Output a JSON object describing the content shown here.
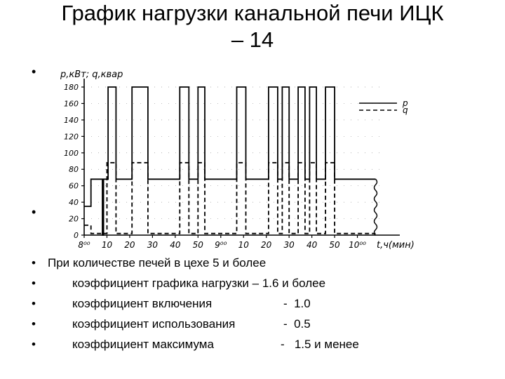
{
  "slide": {
    "title_line1": "График нагрузки канальной печи ИЦК",
    "title_line2": "– 14",
    "bullet_char": "•"
  },
  "chart_data": {
    "type": "line",
    "ylabel": "p,кВт; q,квар",
    "xlabel": "t,ч(мин)",
    "y_ticks": [
      0,
      20,
      40,
      60,
      80,
      100,
      120,
      140,
      160,
      180
    ],
    "ylim": [
      0,
      190
    ],
    "x_ticks": [
      "8⁰⁰",
      "10",
      "20",
      "30",
      "40",
      "50",
      "9⁰⁰",
      "10",
      "20",
      "30",
      "40",
      "50",
      "10⁰⁰"
    ],
    "x_unit": "minutes from 8:00",
    "xlim": [
      0,
      130
    ],
    "legend_position": "top-right",
    "series": [
      {
        "name": "p",
        "style": "solid",
        "points": [
          [
            0,
            35
          ],
          [
            3,
            35
          ],
          [
            3,
            68
          ],
          [
            8,
            68
          ],
          [
            8,
            0
          ],
          [
            8.5,
            0
          ],
          [
            8.5,
            68
          ],
          [
            10.5,
            68
          ],
          [
            10.5,
            180
          ],
          [
            14,
            180
          ],
          [
            14,
            68
          ],
          [
            21,
            68
          ],
          [
            21,
            180
          ],
          [
            28,
            180
          ],
          [
            28,
            68
          ],
          [
            42,
            68
          ],
          [
            42,
            180
          ],
          [
            46,
            180
          ],
          [
            46,
            68
          ],
          [
            50,
            68
          ],
          [
            50,
            180
          ],
          [
            53,
            180
          ],
          [
            53,
            68
          ],
          [
            67,
            68
          ],
          [
            67,
            180
          ],
          [
            71,
            180
          ],
          [
            71,
            68
          ],
          [
            81,
            68
          ],
          [
            81,
            180
          ],
          [
            85,
            180
          ],
          [
            85,
            68
          ],
          [
            87,
            68
          ],
          [
            87,
            180
          ],
          [
            90,
            180
          ],
          [
            90,
            68
          ],
          [
            94,
            68
          ],
          [
            94,
            180
          ],
          [
            97,
            180
          ],
          [
            97,
            68
          ],
          [
            99,
            68
          ],
          [
            99,
            180
          ],
          [
            102,
            180
          ],
          [
            102,
            68
          ],
          [
            106,
            68
          ],
          [
            106,
            180
          ],
          [
            110,
            180
          ],
          [
            110,
            68
          ],
          [
            128,
            68
          ]
        ]
      },
      {
        "name": "q",
        "style": "dashed",
        "points": [
          [
            0,
            12
          ],
          [
            3,
            12
          ],
          [
            3,
            2
          ],
          [
            10,
            2
          ],
          [
            10,
            88
          ],
          [
            14,
            88
          ],
          [
            14,
            2
          ],
          [
            21,
            2
          ],
          [
            21,
            88
          ],
          [
            28,
            88
          ],
          [
            28,
            2
          ],
          [
            42,
            2
          ],
          [
            42,
            88
          ],
          [
            46,
            88
          ],
          [
            46,
            2
          ],
          [
            50,
            2
          ],
          [
            50,
            88
          ],
          [
            53,
            88
          ],
          [
            53,
            2
          ],
          [
            67,
            2
          ],
          [
            67,
            88
          ],
          [
            71,
            88
          ],
          [
            71,
            2
          ],
          [
            81,
            2
          ],
          [
            81,
            88
          ],
          [
            85,
            88
          ],
          [
            85,
            2
          ],
          [
            87,
            2
          ],
          [
            87,
            88
          ],
          [
            90,
            88
          ],
          [
            90,
            2
          ],
          [
            94,
            2
          ],
          [
            94,
            88
          ],
          [
            97,
            88
          ],
          [
            97,
            2
          ],
          [
            99,
            2
          ],
          [
            99,
            88
          ],
          [
            102,
            88
          ],
          [
            102,
            2
          ],
          [
            106,
            2
          ],
          [
            106,
            88
          ],
          [
            110,
            88
          ],
          [
            110,
            2
          ],
          [
            128,
            2
          ]
        ]
      }
    ]
  },
  "notes": [
    "При количестве печей в цехе 5 и более",
    "коэффициент графика нагрузки – 1.6 и более",
    "коэффициент включения",
    "-  1.0",
    "коэффициент использования",
    "-  0.5",
    "коэффициент максимума",
    "-   1.5 и менее"
  ]
}
